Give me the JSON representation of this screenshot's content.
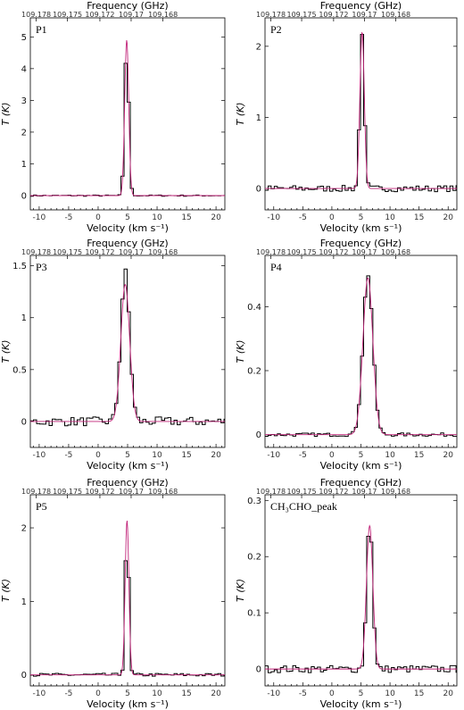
{
  "figure": {
    "top_axis_title": "Frequency (GHz)",
    "bottom_axis_title": "Velocity (km s⁻¹)",
    "y_axis_title": "T (K)",
    "top_tick_labels": [
      "109.178",
      "109.175",
      "109.172",
      "109.17",
      "109.168"
    ],
    "colors": {
      "observed": "#000000",
      "fit": "#c2257a"
    }
  },
  "chart_data": [
    {
      "type": "line",
      "panel_label": "P1",
      "xlim": [
        -11.5,
        21.5
      ],
      "ylim": [
        -0.45,
        5.6
      ],
      "xticks": [
        -10,
        -5,
        0,
        5,
        10,
        15,
        20
      ],
      "yticks": [
        0,
        1,
        2,
        3,
        4,
        5
      ],
      "xlabel": "Velocity (km s⁻¹)",
      "ylabel": "T (K)",
      "peak": 4.8,
      "center": 4.85,
      "width": 0.35,
      "noise": 0.02,
      "fit_peak": 4.9,
      "fit_width": 0.34,
      "series": [
        {
          "name": "observed",
          "style": "step"
        },
        {
          "name": "fit",
          "style": "smooth"
        }
      ]
    },
    {
      "type": "line",
      "panel_label": "P2",
      "xlim": [
        -11.5,
        21.5
      ],
      "ylim": [
        -0.3,
        2.4
      ],
      "xticks": [
        -10,
        -5,
        0,
        5,
        10,
        15,
        20
      ],
      "yticks": [
        0,
        1,
        2
      ],
      "xlabel": "Velocity (km s⁻¹)",
      "ylabel": "T (K)",
      "peak": 2.2,
      "center": 5.2,
      "width": 0.38,
      "noise": 0.04,
      "fit_peak": 2.2,
      "fit_width": 0.38,
      "series": [
        {
          "name": "observed",
          "style": "step"
        },
        {
          "name": "fit",
          "style": "smooth"
        }
      ]
    },
    {
      "type": "line",
      "panel_label": "P3",
      "xlim": [
        -11.5,
        21.5
      ],
      "ylim": [
        -0.25,
        1.6
      ],
      "xticks": [
        -10,
        -5,
        0,
        5,
        10,
        15,
        20
      ],
      "yticks": [
        0,
        0.5,
        1,
        1.5
      ],
      "xlabel": "Velocity (km s⁻¹)",
      "ylabel": "T (K)",
      "peak": 1.44,
      "center": 4.6,
      "width": 0.75,
      "noise": 0.04,
      "fit_peak": 1.32,
      "fit_width": 0.75,
      "series": [
        {
          "name": "observed",
          "style": "step"
        },
        {
          "name": "fit",
          "style": "smooth"
        }
      ]
    },
    {
      "type": "line",
      "panel_label": "P4",
      "xlim": [
        -11.5,
        21.5
      ],
      "ylim": [
        -0.04,
        0.56
      ],
      "xticks": [
        -10,
        -5,
        0,
        5,
        10,
        15,
        20
      ],
      "yticks": [
        0,
        0.2,
        0.4
      ],
      "xlabel": "Velocity (km s⁻¹)",
      "ylabel": "T (K)",
      "peak": 0.5,
      "center": 6.2,
      "width": 0.85,
      "noise": 0.005,
      "fit_peak": 0.49,
      "fit_width": 0.85,
      "series": [
        {
          "name": "observed",
          "style": "step"
        },
        {
          "name": "fit",
          "style": "smooth"
        }
      ]
    },
    {
      "type": "line",
      "panel_label": "P5",
      "xlim": [
        -11.5,
        21.5
      ],
      "ylim": [
        -0.15,
        2.45
      ],
      "xticks": [
        -10,
        -5,
        0,
        5,
        10,
        15,
        20
      ],
      "yticks": [
        0,
        1,
        2
      ],
      "xlabel": "Velocity (km s⁻¹)",
      "ylabel": "T (K)",
      "peak": 2.12,
      "center": 4.9,
      "width": 0.3,
      "noise": 0.02,
      "fit_peak": 2.1,
      "fit_width": 0.32,
      "series": [
        {
          "name": "observed",
          "style": "step"
        },
        {
          "name": "fit",
          "style": "smooth"
        }
      ]
    },
    {
      "type": "line",
      "panel_label": "CH₃CHO_peak",
      "xlim": [
        -11.5,
        21.5
      ],
      "ylim": [
        -0.03,
        0.31
      ],
      "xticks": [
        -10,
        -5,
        0,
        5,
        10,
        15,
        20
      ],
      "yticks": [
        0,
        0.1,
        0.2,
        0.3
      ],
      "xlabel": "Velocity (km s⁻¹)",
      "ylabel": "T (K)",
      "peak": 0.27,
      "center": 6.5,
      "width": 0.5,
      "noise": 0.006,
      "fit_peak": 0.255,
      "fit_width": 0.55,
      "series": [
        {
          "name": "observed",
          "style": "step"
        },
        {
          "name": "fit",
          "style": "smooth"
        }
      ]
    }
  ]
}
